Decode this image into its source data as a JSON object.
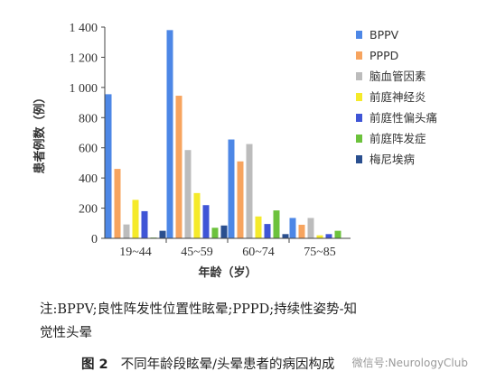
{
  "chart_data": {
    "type": "bar",
    "ylabel": "患者例数（例）",
    "xlabel": "年龄（岁）",
    "categories": [
      "19~44",
      "45~59",
      "60~74",
      "75~85"
    ],
    "ylim": [
      0,
      1400
    ],
    "yticks": [
      {
        "value": 0,
        "label": "0"
      },
      {
        "value": 200,
        "label": "200"
      },
      {
        "value": 400,
        "label": "400"
      },
      {
        "value": 600,
        "label": "600"
      },
      {
        "value": 800,
        "label": "800"
      },
      {
        "value": 1000,
        "label": "1 000"
      },
      {
        "value": 1200,
        "label": "1 200"
      },
      {
        "value": 1400,
        "label": "1 400"
      }
    ],
    "legend_position": "right",
    "series": [
      {
        "name": "BPPV",
        "color": "#4d87e6",
        "values": [
          955,
          1380,
          655,
          135
        ]
      },
      {
        "name": "PPPD",
        "color": "#f7a45f",
        "values": [
          460,
          945,
          510,
          90
        ]
      },
      {
        "name": "脑血管因素",
        "color": "#bcbcbc",
        "values": [
          92,
          585,
          625,
          135
        ]
      },
      {
        "name": "前庭神经炎",
        "color": "#f5ea2a",
        "values": [
          255,
          300,
          145,
          20
        ]
      },
      {
        "name": "前庭性偏头痛",
        "color": "#3f55d6",
        "values": [
          180,
          220,
          95,
          28
        ]
      },
      {
        "name": "前庭阵发症",
        "color": "#6cc23c",
        "values": [
          5,
          70,
          185,
          50
        ]
      },
      {
        "name": "梅尼埃病",
        "color": "#2a4f8f",
        "values": [
          50,
          85,
          28,
          0
        ]
      }
    ]
  },
  "note": {
    "line1": "注:BPPV;良性阵发性位置性眩晕;PPPD;持续性姿势-知",
    "line2": "觉性头晕"
  },
  "caption": {
    "figure": "图 2",
    "title": "不同年龄段眩晕/头晕患者的病因构成"
  },
  "watermark": "微信号:NeurologyClub"
}
